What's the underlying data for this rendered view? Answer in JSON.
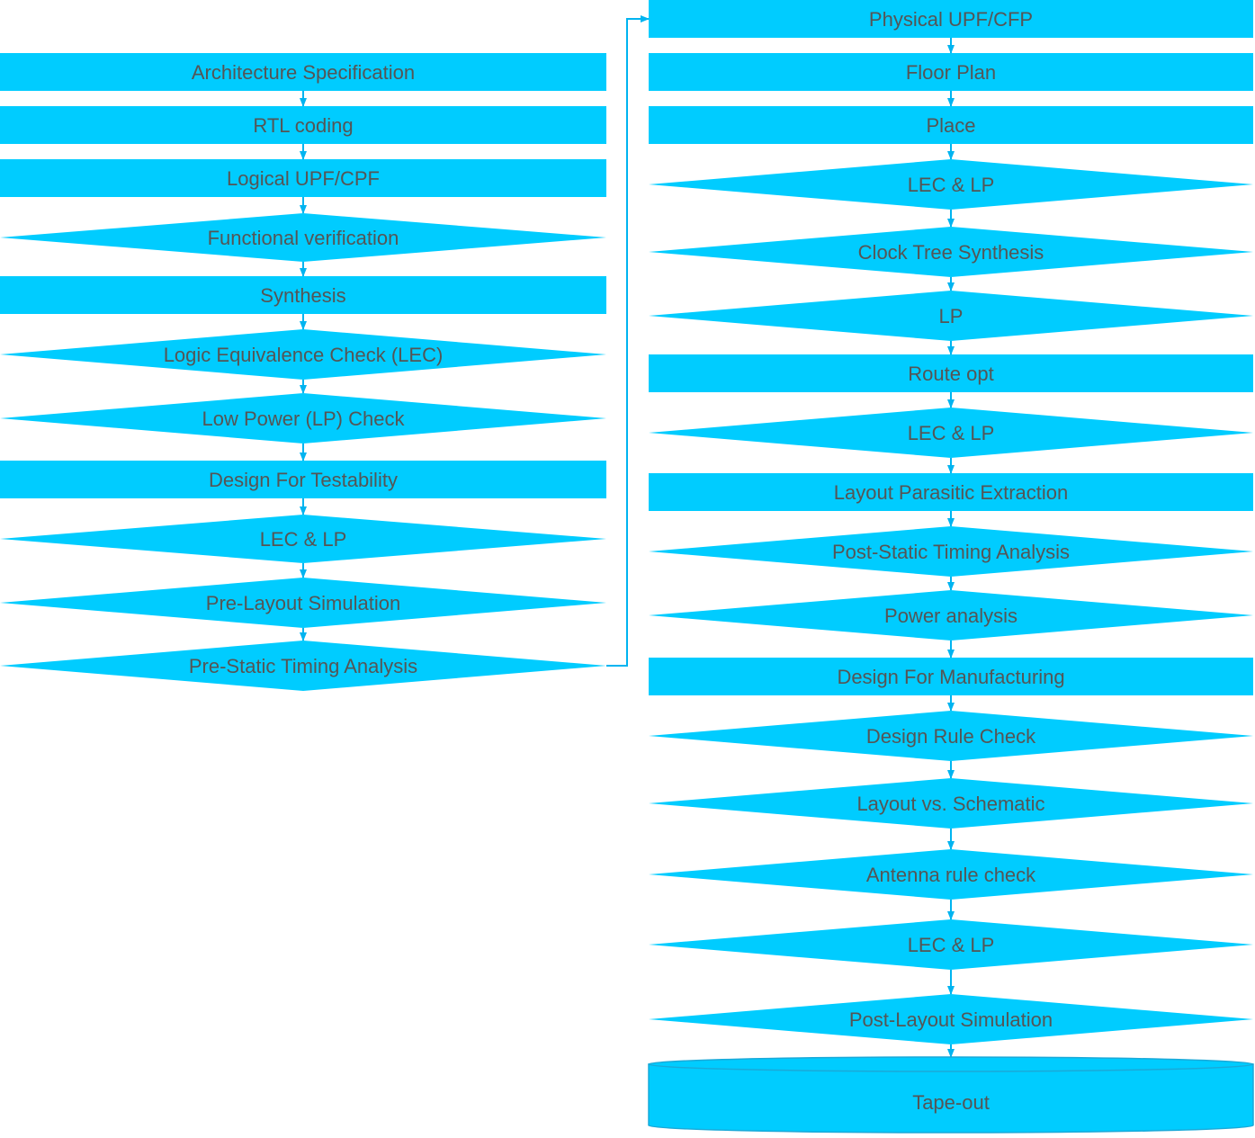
{
  "colors": {
    "fill": "#00CCFF",
    "stroke": "#1aa9d8",
    "text": "#555555",
    "connector": "#00B4F0"
  },
  "left_column": [
    {
      "id": "arch",
      "shape": "process",
      "label": "Architecture Specification"
    },
    {
      "id": "rtl",
      "shape": "process",
      "label": "RTL coding"
    },
    {
      "id": "logical-upf",
      "shape": "process",
      "label": "Logical UPF/CPF"
    },
    {
      "id": "func-verif",
      "shape": "decision",
      "label": "Functional verification"
    },
    {
      "id": "synthesis",
      "shape": "process",
      "label": "Synthesis"
    },
    {
      "id": "lec",
      "shape": "decision",
      "label": "Logic Equivalence Check (LEC)"
    },
    {
      "id": "lp-check",
      "shape": "decision",
      "label": "Low Power (LP) Check"
    },
    {
      "id": "dft",
      "shape": "process",
      "label": "Design For Testability"
    },
    {
      "id": "lec-lp-1",
      "shape": "decision",
      "label": "LEC & LP"
    },
    {
      "id": "pre-layout-sim",
      "shape": "decision",
      "label": "Pre-Layout Simulation"
    },
    {
      "id": "pre-sta",
      "shape": "decision",
      "label": "Pre-Static Timing Analysis"
    }
  ],
  "right_column": [
    {
      "id": "physical-upf",
      "shape": "process",
      "label": "Physical UPF/CFP"
    },
    {
      "id": "floor-plan",
      "shape": "process",
      "label": "Floor Plan"
    },
    {
      "id": "place",
      "shape": "process",
      "label": "Place"
    },
    {
      "id": "lec-lp-2",
      "shape": "decision",
      "label": "LEC & LP"
    },
    {
      "id": "cts",
      "shape": "decision",
      "label": "Clock Tree Synthesis"
    },
    {
      "id": "lp",
      "shape": "decision",
      "label": "LP"
    },
    {
      "id": "route-opt",
      "shape": "process",
      "label": "Route opt"
    },
    {
      "id": "lec-lp-3",
      "shape": "decision",
      "label": "LEC & LP"
    },
    {
      "id": "lpe",
      "shape": "process",
      "label": "Layout Parasitic Extraction"
    },
    {
      "id": "post-sta",
      "shape": "decision",
      "label": "Post-Static Timing Analysis"
    },
    {
      "id": "power",
      "shape": "decision",
      "label": "Power analysis"
    },
    {
      "id": "dfm",
      "shape": "process",
      "label": "Design For Manufacturing"
    },
    {
      "id": "drc",
      "shape": "decision",
      "label": "Design Rule Check"
    },
    {
      "id": "lvs",
      "shape": "decision",
      "label": "Layout vs. Schematic"
    },
    {
      "id": "antenna",
      "shape": "decision",
      "label": "Antenna rule check"
    },
    {
      "id": "lec-lp-4",
      "shape": "decision",
      "label": "LEC & LP"
    },
    {
      "id": "post-layout-sim",
      "shape": "decision",
      "label": "Post-Layout Simulation"
    },
    {
      "id": "tape-out",
      "shape": "terminal",
      "label": "Tape-out"
    }
  ]
}
